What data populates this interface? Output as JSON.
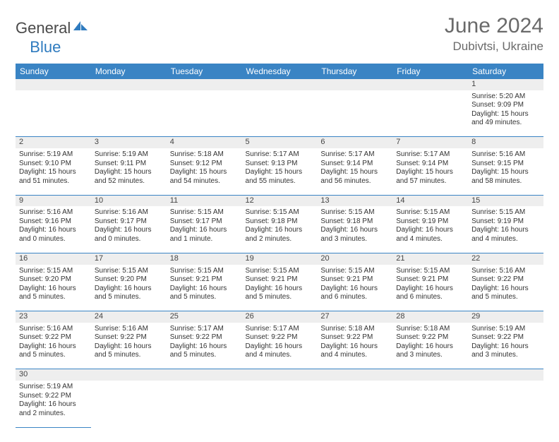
{
  "logo": {
    "text1": "General",
    "text2": "Blue"
  },
  "title": "June 2024",
  "location": "Dubivtsi, Ukraine",
  "colors": {
    "header_bg": "#3a84c4",
    "header_fg": "#ffffff",
    "numrow_bg": "#eeeeee",
    "rule": "#3a84c4",
    "title_color": "#6a6a6a"
  },
  "day_headers": [
    "Sunday",
    "Monday",
    "Tuesday",
    "Wednesday",
    "Thursday",
    "Friday",
    "Saturday"
  ],
  "weeks": [
    [
      null,
      null,
      null,
      null,
      null,
      null,
      {
        "n": "1",
        "sr": "5:20 AM",
        "ss": "9:09 PM",
        "dl": "15 hours and 49 minutes."
      }
    ],
    [
      {
        "n": "2",
        "sr": "5:19 AM",
        "ss": "9:10 PM",
        "dl": "15 hours and 51 minutes."
      },
      {
        "n": "3",
        "sr": "5:19 AM",
        "ss": "9:11 PM",
        "dl": "15 hours and 52 minutes."
      },
      {
        "n": "4",
        "sr": "5:18 AM",
        "ss": "9:12 PM",
        "dl": "15 hours and 54 minutes."
      },
      {
        "n": "5",
        "sr": "5:17 AM",
        "ss": "9:13 PM",
        "dl": "15 hours and 55 minutes."
      },
      {
        "n": "6",
        "sr": "5:17 AM",
        "ss": "9:14 PM",
        "dl": "15 hours and 56 minutes."
      },
      {
        "n": "7",
        "sr": "5:17 AM",
        "ss": "9:14 PM",
        "dl": "15 hours and 57 minutes."
      },
      {
        "n": "8",
        "sr": "5:16 AM",
        "ss": "9:15 PM",
        "dl": "15 hours and 58 minutes."
      }
    ],
    [
      {
        "n": "9",
        "sr": "5:16 AM",
        "ss": "9:16 PM",
        "dl": "16 hours and 0 minutes."
      },
      {
        "n": "10",
        "sr": "5:16 AM",
        "ss": "9:17 PM",
        "dl": "16 hours and 0 minutes."
      },
      {
        "n": "11",
        "sr": "5:15 AM",
        "ss": "9:17 PM",
        "dl": "16 hours and 1 minute."
      },
      {
        "n": "12",
        "sr": "5:15 AM",
        "ss": "9:18 PM",
        "dl": "16 hours and 2 minutes."
      },
      {
        "n": "13",
        "sr": "5:15 AM",
        "ss": "9:18 PM",
        "dl": "16 hours and 3 minutes."
      },
      {
        "n": "14",
        "sr": "5:15 AM",
        "ss": "9:19 PM",
        "dl": "16 hours and 4 minutes."
      },
      {
        "n": "15",
        "sr": "5:15 AM",
        "ss": "9:19 PM",
        "dl": "16 hours and 4 minutes."
      }
    ],
    [
      {
        "n": "16",
        "sr": "5:15 AM",
        "ss": "9:20 PM",
        "dl": "16 hours and 5 minutes."
      },
      {
        "n": "17",
        "sr": "5:15 AM",
        "ss": "9:20 PM",
        "dl": "16 hours and 5 minutes."
      },
      {
        "n": "18",
        "sr": "5:15 AM",
        "ss": "9:21 PM",
        "dl": "16 hours and 5 minutes."
      },
      {
        "n": "19",
        "sr": "5:15 AM",
        "ss": "9:21 PM",
        "dl": "16 hours and 5 minutes."
      },
      {
        "n": "20",
        "sr": "5:15 AM",
        "ss": "9:21 PM",
        "dl": "16 hours and 6 minutes."
      },
      {
        "n": "21",
        "sr": "5:15 AM",
        "ss": "9:21 PM",
        "dl": "16 hours and 6 minutes."
      },
      {
        "n": "22",
        "sr": "5:16 AM",
        "ss": "9:22 PM",
        "dl": "16 hours and 5 minutes."
      }
    ],
    [
      {
        "n": "23",
        "sr": "5:16 AM",
        "ss": "9:22 PM",
        "dl": "16 hours and 5 minutes."
      },
      {
        "n": "24",
        "sr": "5:16 AM",
        "ss": "9:22 PM",
        "dl": "16 hours and 5 minutes."
      },
      {
        "n": "25",
        "sr": "5:17 AM",
        "ss": "9:22 PM",
        "dl": "16 hours and 5 minutes."
      },
      {
        "n": "26",
        "sr": "5:17 AM",
        "ss": "9:22 PM",
        "dl": "16 hours and 4 minutes."
      },
      {
        "n": "27",
        "sr": "5:18 AM",
        "ss": "9:22 PM",
        "dl": "16 hours and 4 minutes."
      },
      {
        "n": "28",
        "sr": "5:18 AM",
        "ss": "9:22 PM",
        "dl": "16 hours and 3 minutes."
      },
      {
        "n": "29",
        "sr": "5:19 AM",
        "ss": "9:22 PM",
        "dl": "16 hours and 3 minutes."
      }
    ],
    [
      {
        "n": "30",
        "sr": "5:19 AM",
        "ss": "9:22 PM",
        "dl": "16 hours and 2 minutes."
      },
      null,
      null,
      null,
      null,
      null,
      null
    ]
  ],
  "labels": {
    "sunrise": "Sunrise: ",
    "sunset": "Sunset: ",
    "daylight": "Daylight: "
  }
}
